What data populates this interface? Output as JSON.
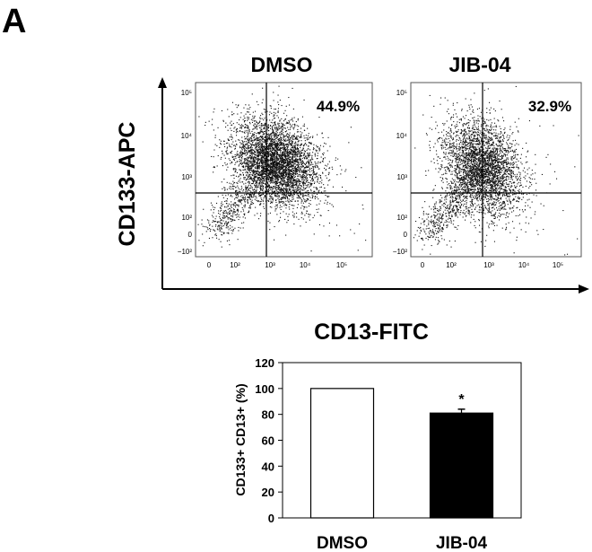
{
  "panel_label": "A",
  "flow": {
    "x_axis_label": "CD13-FITC",
    "y_axis_label": "CD133-APC",
    "x_ticks": [
      "0",
      "10²",
      "10³",
      "10⁴",
      "10⁵"
    ],
    "y_ticks": [
      "10⁵",
      "10⁴",
      "10³",
      "10²",
      "0",
      "−10²"
    ],
    "panels": [
      {
        "title": "DMSO",
        "quadrant_percent": "44.9%"
      },
      {
        "title": "JIB-04",
        "quadrant_percent": "32.9%"
      }
    ]
  },
  "chart_data": [
    {
      "type": "scatter",
      "title": "DMSO",
      "xlabel": "CD13-FITC",
      "ylabel": "CD133-APC",
      "x_scale": "biexponential",
      "y_scale": "biexponential",
      "annotations": [
        "44.9%"
      ]
    },
    {
      "type": "scatter",
      "title": "JIB-04",
      "xlabel": "CD13-FITC",
      "ylabel": "CD133-APC",
      "x_scale": "biexponential",
      "y_scale": "biexponential",
      "annotations": [
        "32.9%"
      ]
    },
    {
      "type": "bar",
      "categories": [
        "DMSO",
        "JIB-04"
      ],
      "values": [
        100,
        81
      ],
      "errors": [
        0,
        3
      ],
      "bar_colors": [
        "#ffffff",
        "#000000"
      ],
      "ylabel": "CD133+ CD13+ (%)",
      "ylim": [
        0,
        120
      ],
      "yticks": [
        0,
        20,
        40,
        60,
        80,
        100,
        120
      ],
      "significance": [
        "",
        "*"
      ]
    }
  ]
}
